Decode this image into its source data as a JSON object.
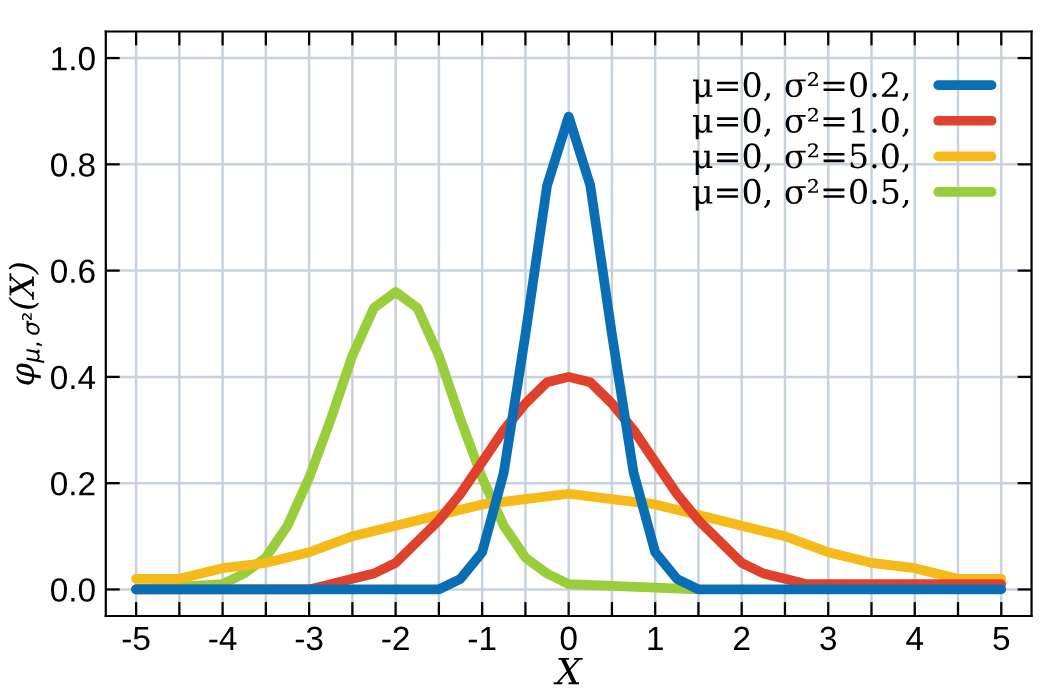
{
  "chart_data": {
    "type": "line",
    "xlabel": "X",
    "ylabel": "φ$_{μ,σ²}$(X)",
    "xlim": [
      -5.35,
      5.35
    ],
    "ylim": [
      -0.05,
      1.05
    ],
    "xticks": [
      -5,
      {
        "value": -4.5,
        "label": null
      },
      -4,
      {
        "value": -3.5,
        "label": null
      },
      -3,
      {
        "value": -2.5,
        "label": null
      },
      -2,
      {
        "value": -1.5,
        "label": null
      },
      -1,
      {
        "value": -0.5,
        "label": null
      },
      0,
      {
        "value": 0.5,
        "label": null
      },
      1,
      {
        "value": 1.5,
        "label": null
      },
      2,
      {
        "value": 2.5,
        "label": null
      },
      3,
      {
        "value": 3.5,
        "label": null
      },
      4,
      {
        "value": 4.5,
        "label": null
      },
      5
    ],
    "yticks": [
      {
        "value": 0,
        "label": "0.0"
      },
      0.2,
      0.4,
      0.6,
      0.8,
      {
        "value": 1,
        "label": "1.0"
      }
    ],
    "grid": true,
    "legend": "top right",
    "marker": "none",
    "line_style": "solid",
    "series": [
      {
        "name": "μ=0, σ²=0.2,",
        "color": "#0a6eb4",
        "x": [
          -5,
          -1.5,
          -1.25,
          -1,
          -0.75,
          -0.5,
          -0.25,
          0,
          0.25,
          0.5,
          0.75,
          1,
          1.25,
          1.5,
          5
        ],
        "values": [
          0.0,
          0.0,
          0.02,
          0.07,
          0.22,
          0.48,
          0.76,
          0.89,
          0.76,
          0.48,
          0.22,
          0.07,
          0.02,
          0.0,
          0.0
        ]
      },
      {
        "name": "μ=0, σ²=1.0,",
        "color": "#e0412c",
        "x": [
          -5,
          -3,
          -2.75,
          -2.5,
          -2.25,
          -2,
          -1.75,
          -1.5,
          -1.25,
          -1,
          -0.75,
          -0.5,
          -0.25,
          0,
          0.25,
          0.5,
          0.75,
          1,
          1.25,
          1.5,
          1.75,
          2,
          2.25,
          2.5,
          2.75,
          3,
          5
        ],
        "values": [
          0.0,
          0.0,
          0.01,
          0.02,
          0.03,
          0.05,
          0.09,
          0.13,
          0.18,
          0.24,
          0.3,
          0.35,
          0.39,
          0.4,
          0.39,
          0.35,
          0.3,
          0.24,
          0.18,
          0.13,
          0.09,
          0.05,
          0.03,
          0.02,
          0.01,
          0.01,
          0.01
        ]
      },
      {
        "name": "μ=0, σ²=5.0,",
        "color": "#f6b91a",
        "x": [
          -5,
          -4.5,
          -4,
          -3.5,
          -3,
          -2.5,
          -2,
          -1.5,
          -1,
          -0.5,
          0,
          0.5,
          1,
          1.5,
          2,
          2.5,
          3,
          3.5,
          4,
          4.5,
          5
        ],
        "values": [
          0.02,
          0.02,
          0.04,
          0.05,
          0.07,
          0.1,
          0.12,
          0.14,
          0.16,
          0.17,
          0.18,
          0.17,
          0.16,
          0.14,
          0.12,
          0.1,
          0.07,
          0.05,
          0.04,
          0.02,
          0.02
        ]
      },
      {
        "name": "μ=0, σ²=0.5,",
        "color": "#9acd3c",
        "x": [
          -5,
          -4,
          -3.75,
          -3.5,
          -3.25,
          -3,
          -2.75,
          -2.5,
          -2.25,
          -2,
          -1.75,
          -1.5,
          -1.25,
          -1,
          -0.75,
          -0.5,
          -0.25,
          0,
          1.5
        ],
        "values": [
          0.0,
          0.01,
          0.03,
          0.06,
          0.12,
          0.21,
          0.32,
          0.44,
          0.53,
          0.56,
          0.53,
          0.44,
          0.32,
          0.21,
          0.12,
          0.06,
          0.03,
          0.01,
          0.0
        ]
      }
    ]
  }
}
